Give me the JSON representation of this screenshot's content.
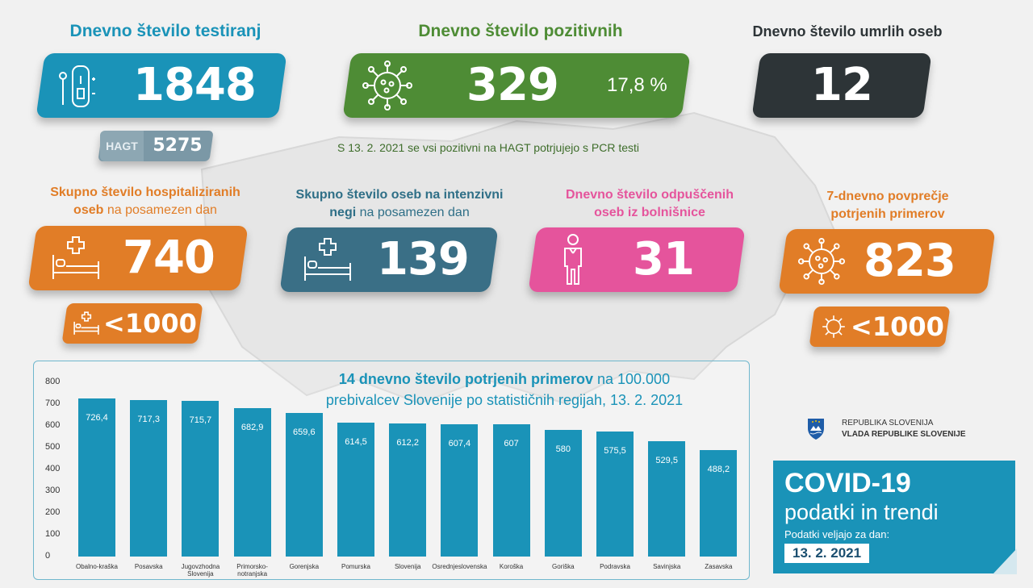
{
  "colors": {
    "blue": "#1a93b8",
    "green": "#4e8c35",
    "dark": "#2d3437",
    "orange": "#e17d27",
    "steel": "#3a6f86",
    "pink": "#e5549c",
    "hagt_grey": "#7b98a6"
  },
  "testing": {
    "title": "Dnevno število testiranj",
    "value": "1848",
    "icon": "test-kit-icon",
    "hagt_label": "HAGT",
    "hagt_value": "5275"
  },
  "positive": {
    "title": "Dnevno število pozitivnih",
    "value": "329",
    "percent": "17,8 %",
    "icon": "virus-icon",
    "note": "S 13. 2. 2021 se vsi pozitivni na HAGT potrjujejo s PCR testi"
  },
  "deaths": {
    "title": "Dnevno število umrlih oseb",
    "value": "12"
  },
  "hospitalized": {
    "title_bold": "Skupno število hospitaliziranih",
    "title_bold2": "oseb",
    "title_thin": " na posamezen dan",
    "value": "740",
    "icon": "hospital-bed-icon",
    "target": "<1000"
  },
  "icu": {
    "title_bold": "Skupno število oseb na intenzivni",
    "title_bold2": "negi",
    "title_thin": " na posamezen dan",
    "value": "139",
    "icon": "hospital-bed-icon"
  },
  "discharged": {
    "title_line1": "Dnevno število odpuščenih",
    "title_line2": "oseb iz bolnišnice",
    "value": "31",
    "icon": "person-icon"
  },
  "avg7": {
    "title_line1": "7-dnevno povprečje",
    "title_line2": "potrjenih primerov",
    "value": "823",
    "icon": "virus-icon",
    "target": "<1000"
  },
  "chart_data": {
    "type": "bar",
    "title_bold": "14 dnevno število potrjenih primerov",
    "title_rest1": " na 100.000",
    "title_line2": "prebivalcev Slovenije po statističnih regijah, 13. 2. 2021",
    "categories": [
      "Obalno-kraška",
      "Posavska",
      "Jugovzhodna Slovenija",
      "Primorsko-notranjska",
      "Gorenjska",
      "Pomurska",
      "Slovenija",
      "Osrednjeslovenska",
      "Koroška",
      "Goriška",
      "Podravska",
      "Savinjska",
      "Zasavska"
    ],
    "category_lines": [
      [
        "Obalno-kraška"
      ],
      [
        "Posavska"
      ],
      [
        "Jugovzhodna",
        "Slovenija"
      ],
      [
        "Primorsko-",
        "notranjska"
      ],
      [
        "Gorenjska"
      ],
      [
        "Pomurska"
      ],
      [
        "Slovenija"
      ],
      [
        "Osrednjeslovenska"
      ],
      [
        "Koroška"
      ],
      [
        "Goriška"
      ],
      [
        "Podravska"
      ],
      [
        "Savinjska"
      ],
      [
        "Zasavska"
      ]
    ],
    "values": [
      726.4,
      717.3,
      715.7,
      682.9,
      659.6,
      614.5,
      612.2,
      607.4,
      607,
      580,
      575.5,
      529.5,
      488.2
    ],
    "value_labels": [
      "726,4",
      "717,3",
      "715,7",
      "682,9",
      "659,6",
      "614,5",
      "612,2",
      "607,4",
      "607",
      "580",
      "575,5",
      "529,5",
      "488,2"
    ],
    "yticks": [
      "0",
      "100",
      "200",
      "300",
      "400",
      "500",
      "600",
      "700",
      "800"
    ],
    "ylim": [
      0,
      800
    ],
    "grid": false
  },
  "government": {
    "line1": "REPUBLIKA SLOVENIJA",
    "line2": "VLADA REPUBLIKE SLOVENIJE",
    "icon": "coat-of-arms-icon"
  },
  "footer": {
    "title": "COVID-19",
    "subtitle": "podatki in trendi",
    "valid_label": "Podatki veljajo za dan:",
    "date": "13. 2. 2021"
  }
}
